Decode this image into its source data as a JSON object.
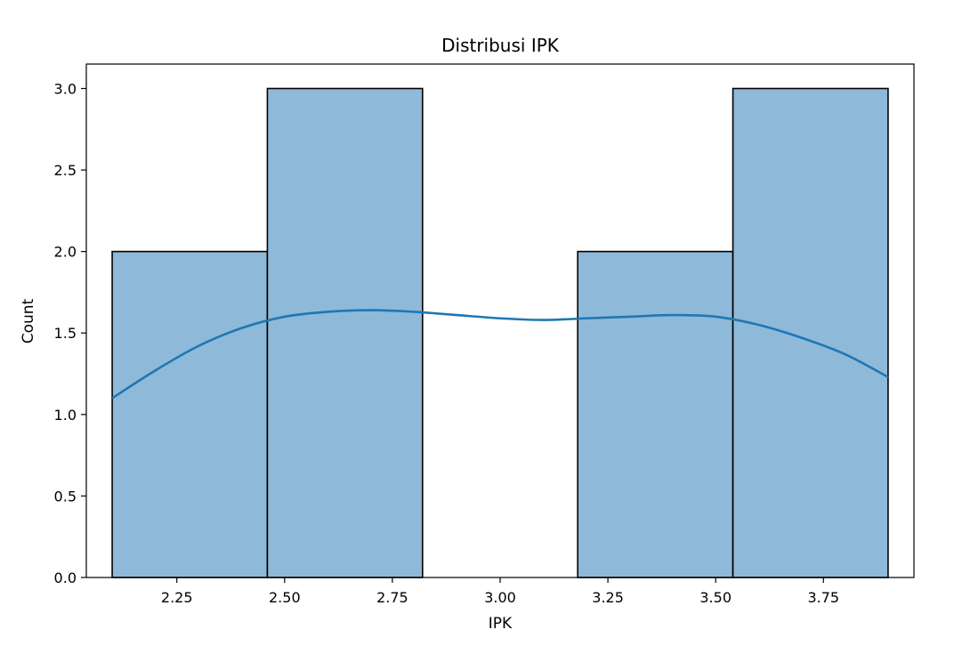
{
  "chart_data": {
    "type": "bar",
    "title": "Distribusi IPK",
    "xlabel": "IPK",
    "ylabel": "Count",
    "xlim": [
      2.04,
      3.96
    ],
    "ylim": [
      0,
      3.15
    ],
    "xticks": [
      "2.25",
      "2.50",
      "2.75",
      "3.00",
      "3.25",
      "3.50",
      "3.75"
    ],
    "yticks": [
      "0.0",
      "0.5",
      "1.0",
      "1.5",
      "2.0",
      "2.5",
      "3.0"
    ],
    "bins": [
      {
        "x0": 2.1,
        "x1": 2.46,
        "count": 2
      },
      {
        "x0": 2.46,
        "x1": 2.82,
        "count": 3
      },
      {
        "x0": 2.82,
        "x1": 3.18,
        "count": 0
      },
      {
        "x0": 3.18,
        "x1": 3.54,
        "count": 2
      },
      {
        "x0": 3.54,
        "x1": 3.9,
        "count": 3
      }
    ],
    "kde": {
      "x": [
        2.1,
        2.2,
        2.3,
        2.4,
        2.5,
        2.6,
        2.7,
        2.8,
        2.9,
        3.0,
        3.1,
        3.2,
        3.3,
        3.4,
        3.5,
        3.6,
        3.7,
        3.8,
        3.9
      ],
      "y": [
        1.1,
        1.27,
        1.42,
        1.53,
        1.6,
        1.63,
        1.64,
        1.63,
        1.61,
        1.59,
        1.58,
        1.59,
        1.6,
        1.61,
        1.6,
        1.55,
        1.47,
        1.37,
        1.23
      ]
    },
    "colors": {
      "bar_fill": "#8fb9d9",
      "bar_edge": "#000000",
      "kde_line": "#1f77b4"
    },
    "grid": false,
    "legend": "none"
  }
}
